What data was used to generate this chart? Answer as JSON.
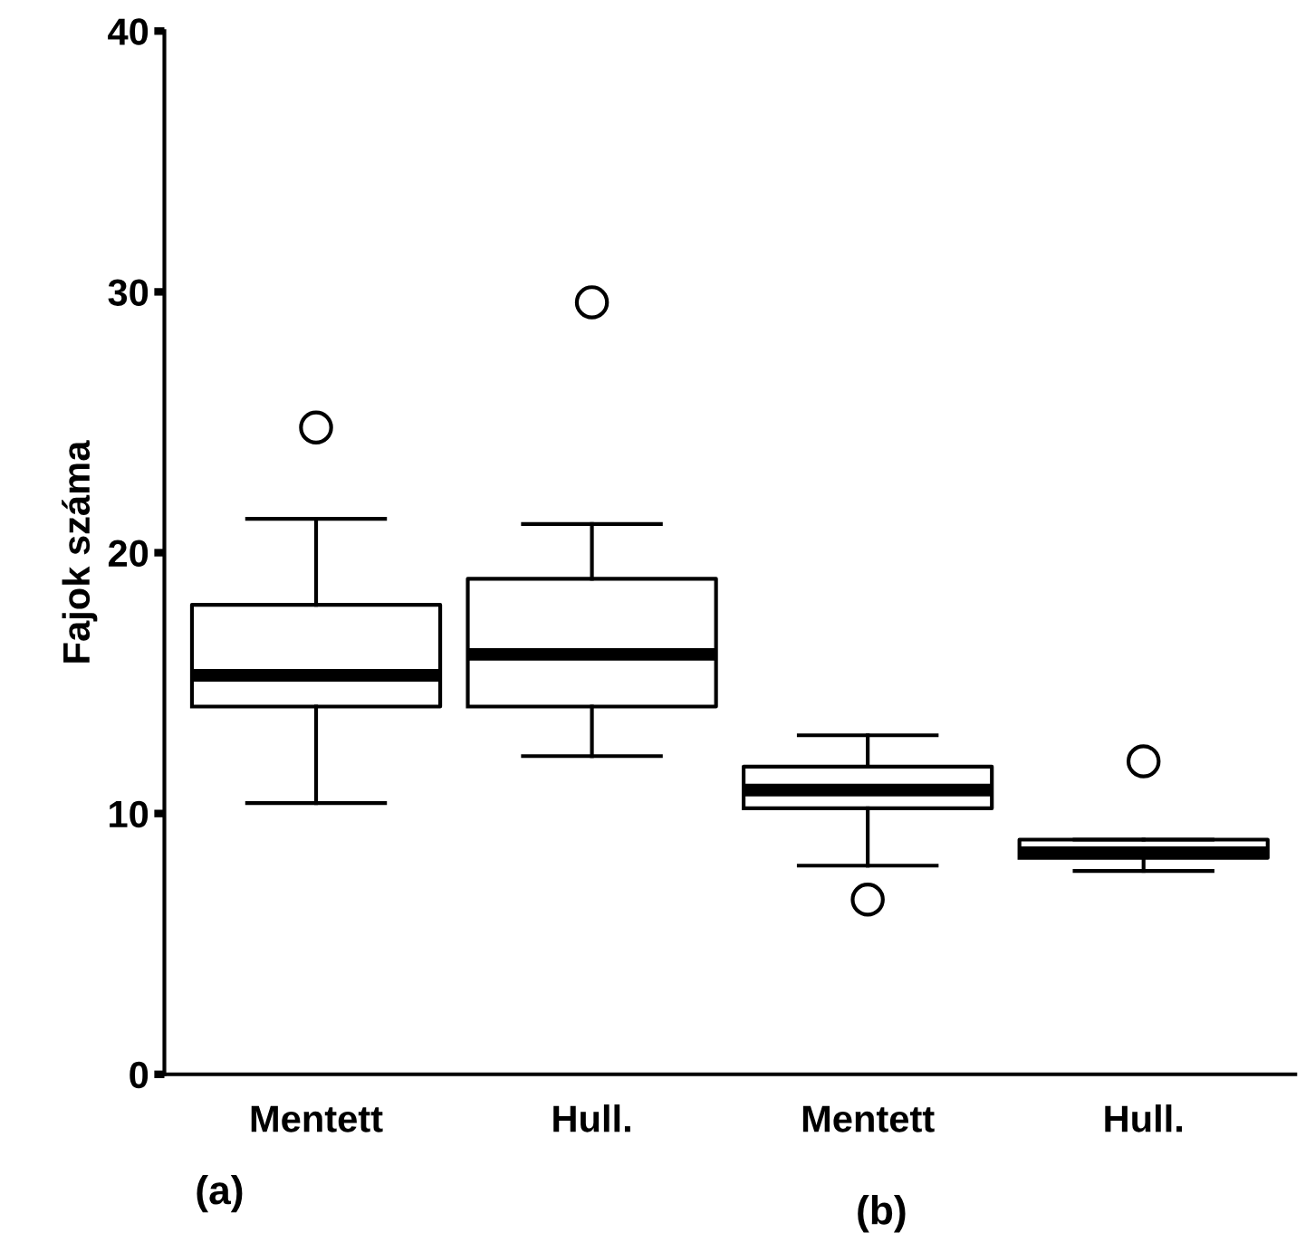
{
  "chart_data": {
    "type": "box",
    "ylabel": "Fajok száma",
    "categories": [
      "Mentett",
      "Hull.",
      "Mentett",
      "Hull."
    ],
    "boxes": [
      {
        "low": 10.4,
        "q1": 14.1,
        "median": 15.3,
        "q3": 18.0,
        "high": 21.3,
        "outliers": [
          24.8
        ]
      },
      {
        "low": 12.2,
        "q1": 14.1,
        "median": 16.1,
        "q3": 19.0,
        "high": 21.1,
        "outliers": [
          29.6
        ]
      },
      {
        "low": 8.0,
        "q1": 10.2,
        "median": 10.9,
        "q3": 11.8,
        "high": 13.0,
        "outliers": [
          6.7
        ]
      },
      {
        "low": 7.8,
        "q1": 8.3,
        "median": 8.5,
        "q3": 9.0,
        "high": 9.0,
        "outliers": [
          12.0
        ]
      }
    ],
    "ylim": [
      0,
      40
    ],
    "yticks": [
      0,
      10,
      20,
      30,
      40
    ],
    "annotations": [
      "(a)",
      "(b)"
    ]
  }
}
